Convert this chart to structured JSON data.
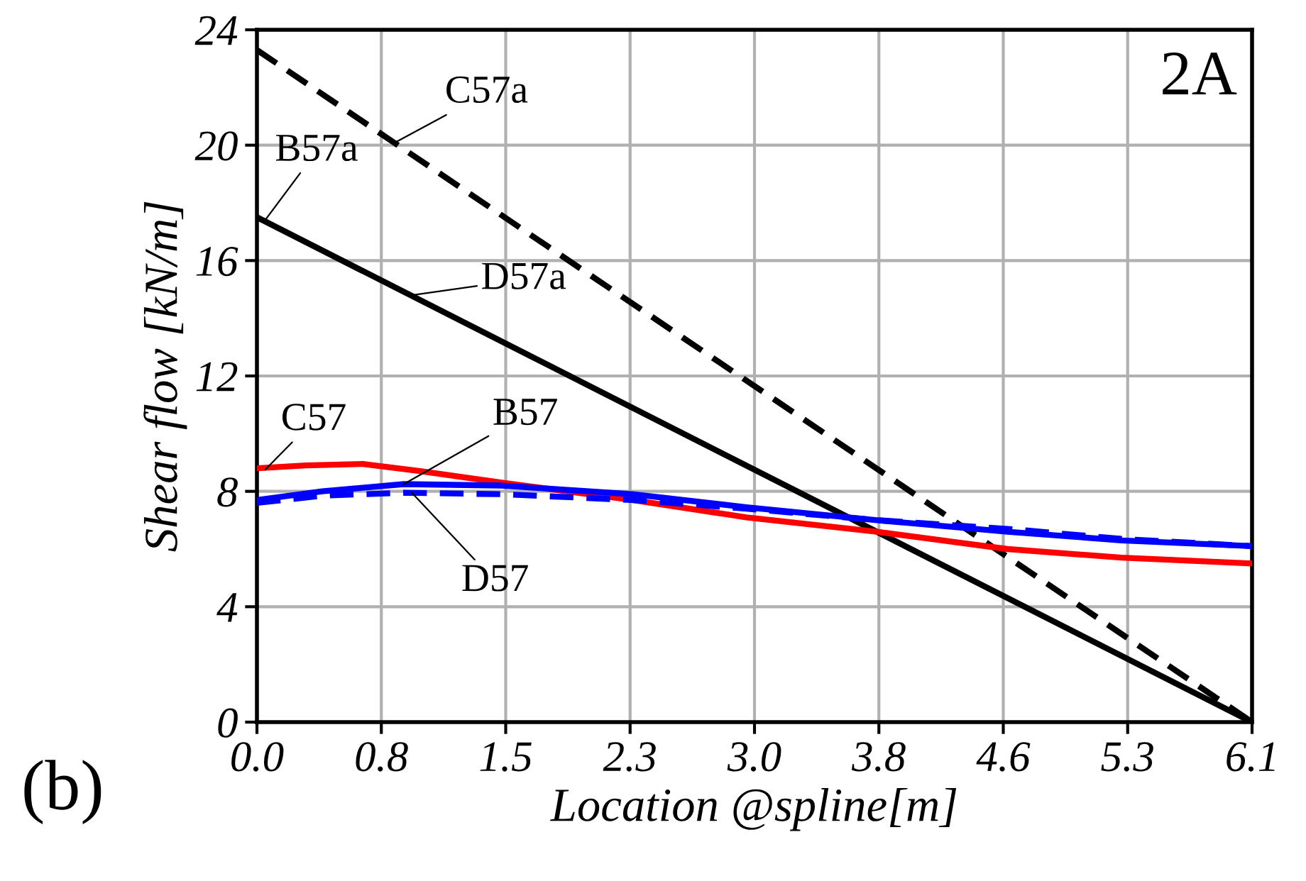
{
  "chart_data": {
    "type": "line",
    "xlabel": "Location @spline[m]",
    "ylabel": "Shear flow [kN/m]",
    "xlim": [
      0,
      6.1
    ],
    "ylim": [
      0,
      24
    ],
    "xticks": [
      {
        "value": 0,
        "label": "0.0"
      },
      {
        "value": 0.7625,
        "label": "0.8"
      },
      {
        "value": 1.525,
        "label": "1.5"
      },
      {
        "value": 2.2875,
        "label": "2.3"
      },
      {
        "value": 3.05,
        "label": "3.0"
      },
      {
        "value": 3.8125,
        "label": "3.8"
      },
      {
        "value": 4.575,
        "label": "4.6"
      },
      {
        "value": 5.3375,
        "label": "5.3"
      },
      {
        "value": 6.1,
        "label": "6.1"
      }
    ],
    "yticks": [
      0,
      4,
      8,
      12,
      16,
      20,
      24
    ],
    "grid": true,
    "series": [
      {
        "color": "#000000",
        "line_style": "dashed",
        "x": [
          0,
          6.1
        ],
        "values": [
          23.3,
          0
        ]
      },
      {
        "color": "#000000",
        "line_style": "solid",
        "x": [
          0,
          6.1
        ],
        "values": [
          17.5,
          0
        ]
      },
      {
        "color": "#ff0000",
        "line_style": "solid",
        "x": [
          0,
          0.3,
          0.65,
          1.0,
          1.5,
          2.3,
          3.0,
          3.8,
          4.6,
          5.3,
          6.1
        ],
        "values": [
          8.8,
          8.9,
          8.95,
          8.7,
          8.3,
          7.7,
          7.1,
          6.6,
          6.0,
          5.7,
          5.5
        ]
      },
      {
        "color": "#0000ff",
        "line_style": "solid",
        "x": [
          0,
          0.4,
          0.9,
          1.5,
          2.3,
          3.0,
          3.8,
          4.6,
          5.3,
          6.1
        ],
        "values": [
          7.7,
          8.0,
          8.25,
          8.2,
          7.9,
          7.45,
          7.0,
          6.6,
          6.3,
          6.1
        ]
      },
      {
        "color": "#0000ff",
        "line_style": "dashed",
        "x": [
          0,
          0.4,
          0.9,
          1.5,
          2.3,
          3.0,
          3.8,
          4.6,
          5.3,
          6.1
        ],
        "values": [
          7.6,
          7.85,
          7.95,
          7.9,
          7.7,
          7.4,
          7.0,
          6.7,
          6.35,
          6.1
        ]
      }
    ],
    "annotations": [
      {
        "text": "C57a",
        "x": 0.85,
        "y": 20.1
      },
      {
        "text": "B57a",
        "x": 0.05,
        "y": 17.4
      },
      {
        "text": "D57a",
        "x": 0.95,
        "y": 14.8
      },
      {
        "text": "C57",
        "x": 0.05,
        "y": 8.75
      },
      {
        "text": "B57",
        "x": 0.9,
        "y": 8.25
      },
      {
        "text": "D57",
        "x": 0.95,
        "y": 7.95
      },
      "2A",
      "(b)"
    ]
  }
}
